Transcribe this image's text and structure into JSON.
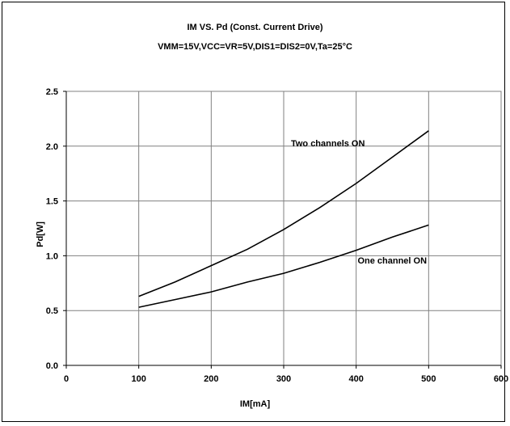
{
  "chart_data": {
    "type": "line",
    "title": "IM VS. Pd (Const. Current Drive)",
    "subtitle": "VMM=15V,VCC=VR=5V,DIS1=DIS2=0V,Ta=25°C",
    "xlabel": "IM[mA]",
    "ylabel": "Pd[W]",
    "xlim": [
      0,
      600
    ],
    "ylim": [
      0,
      2.5
    ],
    "x_ticks": [
      "0",
      "100",
      "200",
      "300",
      "400",
      "500",
      "600"
    ],
    "y_ticks": [
      "0.0",
      "0.5",
      "1.0",
      "1.5",
      "2.0",
      "2.5"
    ],
    "grid": true,
    "series": [
      {
        "name": "Two channels ON",
        "x": [
          100,
          150,
          200,
          250,
          300,
          350,
          400,
          450,
          500
        ],
        "y": [
          0.63,
          0.76,
          0.91,
          1.06,
          1.24,
          1.44,
          1.66,
          1.9,
          2.14
        ]
      },
      {
        "name": "One channel ON",
        "x": [
          100,
          150,
          200,
          250,
          300,
          350,
          400,
          450,
          500
        ],
        "y": [
          0.53,
          0.6,
          0.67,
          0.76,
          0.84,
          0.94,
          1.05,
          1.17,
          1.28
        ]
      }
    ],
    "annotations": [
      {
        "text": "Two channels ON",
        "x": 310,
        "y": 2.0
      },
      {
        "text": "One channel ON",
        "x": 402,
        "y": 0.93
      }
    ]
  }
}
